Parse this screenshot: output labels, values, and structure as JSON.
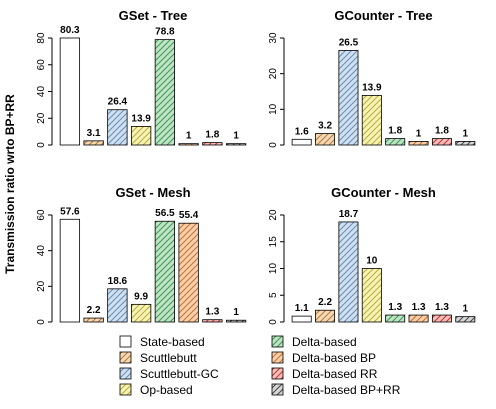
{
  "colors": {
    "background": "#ffffff",
    "ink": "#000000",
    "fill_colors": [
      "#ffffff",
      "#f6d9b4",
      "#cfe0f0",
      "#f7f3b6",
      "#bfe3c4",
      "#f9d0ad",
      "#f7bcbc",
      "#d6d6d6"
    ],
    "hatch_colors": [
      "none",
      "#b07a3c",
      "#6a8cb2",
      "#b8ae3c",
      "#3f9a55",
      "#c96f2a",
      "#c0392b",
      "#444444"
    ],
    "hatch_directions": [
      "none",
      "slash",
      "slash",
      "slash",
      "slash",
      "slash",
      "slash",
      "slash"
    ]
  },
  "y_axis_title": "Transmission ratio wrto BP+RR",
  "chart_data": [
    {
      "type": "bar",
      "title": "GSet - Tree",
      "categories": [
        "State-based",
        "Scuttlebutt",
        "Scuttlebutt-GC",
        "Op-based",
        "Delta-based",
        "Delta-based BP",
        "Delta-based RR",
        "Delta-based BP+RR"
      ],
      "values": [
        80.3,
        3.1,
        26.4,
        13.9,
        78.8,
        1,
        1.8,
        1
      ],
      "labels": [
        "80.3",
        "3.1",
        "26.4",
        "13.9",
        "78.8",
        "1",
        "1.8",
        "1"
      ],
      "ylim": [
        0,
        80
      ],
      "yticks": [
        0,
        20,
        40,
        60,
        80
      ],
      "grid": false
    },
    {
      "type": "bar",
      "title": "GCounter - Tree",
      "categories": [
        "State-based",
        "Scuttlebutt",
        "Scuttlebutt-GC",
        "Op-based",
        "Delta-based",
        "Delta-based BP",
        "Delta-based RR",
        "Delta-based BP+RR"
      ],
      "values": [
        1.6,
        3.2,
        26.5,
        13.9,
        1.8,
        1,
        1.8,
        1
      ],
      "labels": [
        "1.6",
        "3.2",
        "26.5",
        "13.9",
        "1.8",
        "1",
        "1.8",
        "1"
      ],
      "ylim": [
        0,
        30
      ],
      "yticks": [
        0,
        10,
        20,
        30
      ],
      "grid": false
    },
    {
      "type": "bar",
      "title": "GSet - Mesh",
      "categories": [
        "State-based",
        "Scuttlebutt",
        "Scuttlebutt-GC",
        "Op-based",
        "Delta-based",
        "Delta-based BP",
        "Delta-based RR",
        "Delta-based BP+RR"
      ],
      "values": [
        57.6,
        2.2,
        18.6,
        9.9,
        56.5,
        55.4,
        1.3,
        1
      ],
      "labels": [
        "57.6",
        "2.2",
        "18.6",
        "9.9",
        "56.5",
        "55.4",
        "1.3",
        "1"
      ],
      "ylim": [
        0,
        60
      ],
      "yticks": [
        0,
        20,
        40,
        60
      ],
      "grid": false
    },
    {
      "type": "bar",
      "title": "GCounter - Mesh",
      "categories": [
        "State-based",
        "Scuttlebutt",
        "Scuttlebutt-GC",
        "Op-based",
        "Delta-based",
        "Delta-based BP",
        "Delta-based RR",
        "Delta-based BP+RR"
      ],
      "values": [
        1.1,
        2.2,
        18.7,
        10,
        1.3,
        1.3,
        1.3,
        1
      ],
      "labels": [
        "1.1",
        "2.2",
        "18.7",
        "10",
        "1.3",
        "1.3",
        "1.3",
        "1"
      ],
      "ylim": [
        0,
        20
      ],
      "yticks": [
        0,
        5,
        10,
        15,
        20
      ],
      "grid": false
    }
  ],
  "legend": {
    "placement": "bottom",
    "items": [
      "State-based",
      "Delta-based",
      "Scuttlebutt",
      "Delta-based BP",
      "Scuttlebutt-GC",
      "Delta-based RR",
      "Op-based",
      "Delta-based BP+RR"
    ],
    "series_index": [
      0,
      4,
      1,
      5,
      2,
      6,
      3,
      7
    ]
  }
}
